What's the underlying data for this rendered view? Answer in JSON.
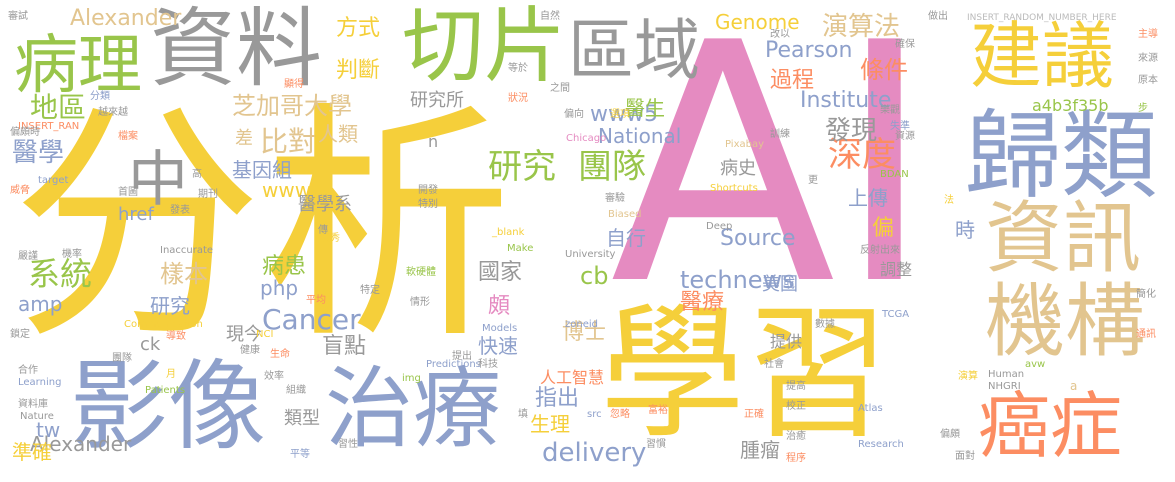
{
  "words": [
    {
      "text": "分析",
      "color": "#F5CF3A"
    },
    {
      "text": "AI",
      "color": "#E58BC1"
    },
    {
      "text": "學習",
      "color": "#F5CF3A"
    },
    {
      "text": "資料",
      "color": "#999999"
    },
    {
      "text": "切片",
      "color": "#99C54A"
    },
    {
      "text": "病理",
      "color": "#99C54A"
    },
    {
      "text": "影像",
      "color": "#8EA0CB"
    },
    {
      "text": "治療",
      "color": "#8EA0CB"
    },
    {
      "text": "歸類",
      "color": "#8EA0CB"
    },
    {
      "text": "資訊",
      "color": "#E2C58F"
    },
    {
      "text": "機構",
      "color": "#E2C58F"
    },
    {
      "text": "建議",
      "color": "#F5CF3A"
    },
    {
      "text": "癌症",
      "color": "#FC8D62"
    },
    {
      "text": "區域",
      "color": "#999999"
    },
    {
      "text": "中",
      "color": "#999999"
    },
    {
      "text": "研究",
      "color": "#99C54A"
    },
    {
      "text": "團隊",
      "color": "#99C54A"
    },
    {
      "text": "系統",
      "color": "#99C54A"
    },
    {
      "text": "Cancer",
      "color": "#8EA0CB"
    },
    {
      "text": "delivery",
      "color": "#8EA0CB"
    },
    {
      "text": "technews",
      "color": "#8EA0CB"
    },
    {
      "text": "深度",
      "color": "#FC8D62"
    },
    {
      "text": "發現",
      "color": "#999999"
    },
    {
      "text": "地區",
      "color": "#99C54A"
    },
    {
      "text": "醫學",
      "color": "#8EA0CB"
    },
    {
      "text": "芝加哥大學",
      "color": "#E2C58F"
    },
    {
      "text": "比對",
      "color": "#E2C58F"
    },
    {
      "text": "基因組",
      "color": "#8EA0CB"
    },
    {
      "text": "www",
      "color": "#F5CF3A"
    },
    {
      "text": "www5",
      "color": "#8EA0CB"
    },
    {
      "text": "Alexander",
      "color": "#E2C58F"
    },
    {
      "text": "Alexander",
      "color": "#999999"
    },
    {
      "text": "方式",
      "color": "#F5CF3A"
    },
    {
      "text": "判斷",
      "color": "#F5CF3A"
    },
    {
      "text": "演算法",
      "color": "#E2C58F"
    },
    {
      "text": "過程",
      "color": "#FC8D62"
    },
    {
      "text": "條件",
      "color": "#FC8D62"
    },
    {
      "text": "Genome",
      "color": "#F5CF3A"
    },
    {
      "text": "Pearson",
      "color": "#8EA0CB"
    },
    {
      "text": "Institute",
      "color": "#8EA0CB"
    },
    {
      "text": "National",
      "color": "#8EA0CB"
    },
    {
      "text": "研究所",
      "color": "#999999"
    },
    {
      "text": "醫生",
      "color": "#99C54A"
    },
    {
      "text": "人類",
      "color": "#E2C58F"
    },
    {
      "text": "差",
      "color": "#E2C58F"
    },
    {
      "text": "樣本",
      "color": "#E2C58F"
    },
    {
      "text": "病患",
      "color": "#99C54A"
    },
    {
      "text": "php",
      "color": "#8EA0CB"
    },
    {
      "text": "amp",
      "color": "#8EA0CB"
    },
    {
      "text": "研究",
      "color": "#8EA0CB"
    },
    {
      "text": "盲點",
      "color": "#999999"
    },
    {
      "text": "類型",
      "color": "#999999"
    },
    {
      "text": "tw",
      "color": "#8EA0CB"
    },
    {
      "text": "準確",
      "color": "#F5CF3A"
    },
    {
      "text": "指出",
      "color": "#8EA0CB"
    },
    {
      "text": "生理",
      "color": "#F5CF3A"
    },
    {
      "text": "快速",
      "color": "#8EA0CB"
    },
    {
      "text": "頗",
      "color": "#E58BC1"
    },
    {
      "text": "國家",
      "color": "#999999"
    },
    {
      "text": "cb",
      "color": "#99C54A"
    },
    {
      "text": "博士",
      "color": "#E2C58F"
    },
    {
      "text": "人工智慧",
      "color": "#FC8D62"
    },
    {
      "text": "自行",
      "color": "#8EA0CB"
    },
    {
      "text": "Source",
      "color": "#8EA0CB"
    },
    {
      "text": "醫療",
      "color": "#FC8D62"
    },
    {
      "text": "美國",
      "color": "#8EA0CB"
    },
    {
      "text": "病史",
      "color": "#999999"
    },
    {
      "text": "上傳",
      "color": "#8EA0CB"
    },
    {
      "text": "偏",
      "color": "#F5CF3A"
    },
    {
      "text": "時",
      "color": "#8EA0CB"
    },
    {
      "text": "調整",
      "color": "#999999"
    },
    {
      "text": "提供",
      "color": "#999999"
    },
    {
      "text": "腫瘤",
      "color": "#999999"
    },
    {
      "text": "a4b3f35b",
      "color": "#99C54A"
    },
    {
      "text": "醫學系",
      "color": "#999999"
    },
    {
      "text": "ck",
      "color": "#999999"
    },
    {
      "text": "現今",
      "color": "#999999"
    },
    {
      "text": "href",
      "color": "#8EA0CB"
    },
    {
      "text": "n",
      "color": "#999999"
    },
    {
      "text": "INSERT_RANDOM_NUMBER_HERE",
      "color": "#BBBBBB"
    },
    {
      "text": "INSERT_RAN",
      "color": "#FC8D62"
    },
    {
      "text": "Chicago",
      "color": "#E58BC1"
    },
    {
      "text": "Pixabay",
      "color": "#E2C58F"
    },
    {
      "text": "Shortcuts",
      "color": "#F5CF3A"
    },
    {
      "text": "BDAN",
      "color": "#99C54A"
    },
    {
      "text": "TCGA",
      "color": "#8EA0CB"
    },
    {
      "text": "Deep",
      "color": "#999999"
    },
    {
      "text": "Biased",
      "color": "#E2C58F"
    },
    {
      "text": "Inaccurate",
      "color": "#999999"
    },
    {
      "text": "University",
      "color": "#999999"
    },
    {
      "text": "Make",
      "color": "#99C54A"
    },
    {
      "text": "_blank",
      "color": "#F5CF3A"
    },
    {
      "text": "zoneid",
      "color": "#8EA0CB"
    },
    {
      "text": "Models",
      "color": "#8EA0CB"
    },
    {
      "text": "Predictions",
      "color": "#8EA0CB"
    },
    {
      "text": "Communication",
      "color": "#F5CF3A"
    },
    {
      "text": "NCI",
      "color": "#F5CF3A"
    },
    {
      "text": "Learning",
      "color": "#8EA0CB"
    },
    {
      "text": "Patients",
      "color": "#99C54A"
    },
    {
      "text": "Nature",
      "color": "#999999"
    },
    {
      "text": "target",
      "color": "#8EA0CB"
    },
    {
      "text": "img",
      "color": "#99C54A"
    },
    {
      "text": "src",
      "color": "#8EA0CB"
    },
    {
      "text": "Atlas",
      "color": "#8EA0CB"
    },
    {
      "text": "Research",
      "color": "#8EA0CB"
    },
    {
      "text": "Human",
      "color": "#999999"
    },
    {
      "text": "NHGRI",
      "color": "#999999"
    },
    {
      "text": "avw",
      "color": "#99C54A"
    },
    {
      "text": "a",
      "color": "#E2C58F"
    },
    {
      "text": "審試",
      "color": "#999999"
    },
    {
      "text": "分類",
      "color": "#8EA0CB"
    },
    {
      "text": "越來越",
      "color": "#999999"
    },
    {
      "text": "偏頗時",
      "color": "#999999"
    },
    {
      "text": "檔案",
      "color": "#FC8D62"
    },
    {
      "text": "高",
      "color": "#999999"
    },
    {
      "text": "首圖",
      "color": "#999999"
    },
    {
      "text": "威脅",
      "color": "#FC8D62"
    },
    {
      "text": "期刊",
      "color": "#999999"
    },
    {
      "text": "發表",
      "color": "#999999"
    },
    {
      "text": "開發",
      "color": "#999999"
    },
    {
      "text": "特別",
      "color": "#999999"
    },
    {
      "text": "嚴謹",
      "color": "#999999"
    },
    {
      "text": "機率",
      "color": "#999999"
    },
    {
      "text": "優秀",
      "color": "#F5CF3A"
    },
    {
      "text": "傳",
      "color": "#999999"
    },
    {
      "text": "軟硬體",
      "color": "#99C54A"
    },
    {
      "text": "特定",
      "color": "#999999"
    },
    {
      "text": "情形",
      "color": "#999999"
    },
    {
      "text": "平均",
      "color": "#FC8D62"
    },
    {
      "text": "導致",
      "color": "#FC8D62"
    },
    {
      "text": "健康",
      "color": "#999999"
    },
    {
      "text": "生命",
      "color": "#FC8D62"
    },
    {
      "text": "鎖定",
      "color": "#999999"
    },
    {
      "text": "合作",
      "color": "#999999"
    },
    {
      "text": "資料庫",
      "color": "#999999"
    },
    {
      "text": "團隊",
      "color": "#999999"
    },
    {
      "text": "效率",
      "color": "#999999"
    },
    {
      "text": "組織",
      "color": "#999999"
    },
    {
      "text": "月",
      "color": "#F5CF3A"
    },
    {
      "text": "習性",
      "color": "#999999"
    },
    {
      "text": "平等",
      "color": "#8EA0CB"
    },
    {
      "text": "科技",
      "color": "#999999"
    },
    {
      "text": "提出",
      "color": "#999999"
    },
    {
      "text": "填",
      "color": "#999999"
    },
    {
      "text": "忽略",
      "color": "#FC8D62"
    },
    {
      "text": "習慣",
      "color": "#999999"
    },
    {
      "text": "富裕",
      "color": "#FC8D62"
    },
    {
      "text": "正確",
      "color": "#FC8D62"
    },
    {
      "text": "程序",
      "color": "#FC8D62"
    },
    {
      "text": "治癒",
      "color": "#999999"
    },
    {
      "text": "校正",
      "color": "#999999"
    },
    {
      "text": "提高",
      "color": "#999999"
    },
    {
      "text": "社會",
      "color": "#999999"
    },
    {
      "text": "數據",
      "color": "#999999"
    },
    {
      "text": "演算",
      "color": "#F5CF3A"
    },
    {
      "text": "偏頗",
      "color": "#999999"
    },
    {
      "text": "面對",
      "color": "#999999"
    },
    {
      "text": "通訊",
      "color": "#FC8D62"
    },
    {
      "text": "簡化",
      "color": "#999999"
    },
    {
      "text": "來源",
      "color": "#999999"
    },
    {
      "text": "原本",
      "color": "#999999"
    },
    {
      "text": "步",
      "color": "#99C54A"
    },
    {
      "text": "主導",
      "color": "#FC8D62"
    },
    {
      "text": "法",
      "color": "#F5CF3A"
    },
    {
      "text": "反射出來",
      "color": "#999999"
    },
    {
      "text": "資源",
      "color": "#999999"
    },
    {
      "text": "失準",
      "color": "#8EA0CB"
    },
    {
      "text": "樂觀",
      "color": "#999999"
    },
    {
      "text": "訓練",
      "color": "#999999"
    },
    {
      "text": "確保",
      "color": "#999999"
    },
    {
      "text": "改以",
      "color": "#999999"
    },
    {
      "text": "自然",
      "color": "#999999"
    },
    {
      "text": "做出",
      "color": "#999999"
    },
    {
      "text": "等於",
      "color": "#999999"
    },
    {
      "text": "之間",
      "color": "#999999"
    },
    {
      "text": "偏向",
      "color": "#999999"
    },
    {
      "text": "選項",
      "color": "#F5CF3A"
    },
    {
      "text": "狀況",
      "color": "#FC8D62"
    },
    {
      "text": "顯得",
      "color": "#FC8D62"
    },
    {
      "text": "更",
      "color": "#999999"
    },
    {
      "text": "審驗",
      "color": "#999999"
    }
  ]
}
